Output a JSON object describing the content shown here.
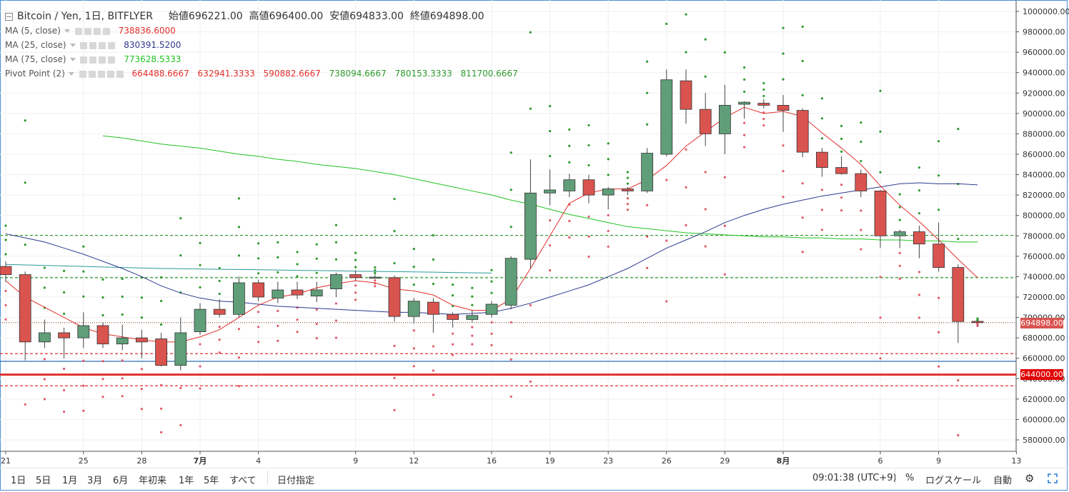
{
  "header": {
    "symbol": "Bitcoin / Yen, 1日, BITFLYER",
    "open_label": "始値",
    "open": "696221.00",
    "high_label": "高値",
    "high": "696400.00",
    "low_label": "安値",
    "low": "694833.00",
    "close_label": "終値",
    "close": "694898.00"
  },
  "indicators": [
    {
      "name": "MA (5, close)",
      "value": "738836.6000",
      "color": "#e0302c"
    },
    {
      "name": "MA (25, close)",
      "value": "830391.5200",
      "color": "#2f3a8f"
    },
    {
      "name": "MA (75, close)",
      "value": "773628.5333",
      "color": "#21c421"
    }
  ],
  "pivot": {
    "name": "Pivot Point (2)",
    "values": [
      "664488.6667",
      "632941.3333",
      "590882.6667",
      "738094.6667",
      "780153.3333",
      "811700.6667"
    ],
    "colors": [
      "#e0302c",
      "#e0302c",
      "#e0302c",
      "#2e9a2e",
      "#2e9a2e",
      "#2e9a2e"
    ]
  },
  "price_tags": {
    "last": "694898.00",
    "line": "644000.00"
  },
  "bottom_bar": {
    "periods": [
      "1日",
      "5日",
      "1月",
      "3月",
      "6月",
      "年初来",
      "1年",
      "5年",
      "すべて"
    ],
    "goto_date": "日付指定",
    "time": "09:01:38 (UTC+9)",
    "percent": "%",
    "log_scale": "ログスケール",
    "auto": "自動"
  },
  "chart_data": {
    "type": "candlestick",
    "x_tick_labels": [
      "21",
      "25",
      "28",
      "7月",
      "4",
      "9",
      "12",
      "16",
      "19",
      "23",
      "26",
      "29",
      "8月",
      "6",
      "9",
      "13"
    ],
    "y_tick_labels": [
      "1000000.00",
      "980000.00",
      "960000.00",
      "940000.00",
      "920000.00",
      "900000.00",
      "880000.00",
      "860000.00",
      "840000.00",
      "820000.00",
      "800000.00",
      "780000.00",
      "760000.00",
      "740000.00",
      "720000.00",
      "700000.00",
      "680000.00",
      "660000.00",
      "640000.00",
      "620000.00",
      "600000.00",
      "580000.00"
    ],
    "ylim": [
      570000,
      1000000
    ],
    "candles": [
      {
        "o": 750000,
        "h": 755000,
        "l": 735000,
        "c": 742000
      },
      {
        "o": 742000,
        "h": 745000,
        "l": 658000,
        "c": 676000
      },
      {
        "o": 676000,
        "h": 698000,
        "l": 670000,
        "c": 685000
      },
      {
        "o": 685000,
        "h": 690000,
        "l": 660000,
        "c": 680000
      },
      {
        "o": 680000,
        "h": 705000,
        "l": 670000,
        "c": 692000
      },
      {
        "o": 692000,
        "h": 695000,
        "l": 670000,
        "c": 674000
      },
      {
        "o": 674000,
        "h": 693000,
        "l": 668000,
        "c": 680000
      },
      {
        "o": 680000,
        "h": 688000,
        "l": 660000,
        "c": 676000
      },
      {
        "o": 679000,
        "h": 685000,
        "l": 652000,
        "c": 653000
      },
      {
        "o": 653000,
        "h": 700000,
        "l": 648000,
        "c": 685000
      },
      {
        "o": 686000,
        "h": 714000,
        "l": 683000,
        "c": 708000
      },
      {
        "o": 708000,
        "h": 718000,
        "l": 700000,
        "c": 703000
      },
      {
        "o": 703000,
        "h": 740000,
        "l": 700000,
        "c": 734000
      },
      {
        "o": 734000,
        "h": 737000,
        "l": 716000,
        "c": 720000
      },
      {
        "o": 719000,
        "h": 735000,
        "l": 714000,
        "c": 727000
      },
      {
        "o": 727000,
        "h": 735000,
        "l": 718000,
        "c": 722000
      },
      {
        "o": 721000,
        "h": 735000,
        "l": 715000,
        "c": 727000
      },
      {
        "o": 728000,
        "h": 744000,
        "l": 720000,
        "c": 742000
      },
      {
        "o": 742000,
        "h": 746000,
        "l": 736000,
        "c": 739000
      },
      {
        "o": 739000,
        "h": 742000,
        "l": 738000,
        "c": 739500
      },
      {
        "o": 739000,
        "h": 741000,
        "l": 696000,
        "c": 701000
      },
      {
        "o": 701000,
        "h": 719000,
        "l": 694000,
        "c": 716000
      },
      {
        "o": 715000,
        "h": 719000,
        "l": 685000,
        "c": 703000
      },
      {
        "o": 703000,
        "h": 705000,
        "l": 690000,
        "c": 698000
      },
      {
        "o": 698000,
        "h": 707000,
        "l": 695000,
        "c": 702000
      },
      {
        "o": 703000,
        "h": 716000,
        "l": 700000,
        "c": 713000
      },
      {
        "o": 712000,
        "h": 760000,
        "l": 708000,
        "c": 758000
      },
      {
        "o": 757000,
        "h": 855000,
        "l": 748000,
        "c": 822000
      },
      {
        "o": 822000,
        "h": 845000,
        "l": 810000,
        "c": 825000
      },
      {
        "o": 824000,
        "h": 841000,
        "l": 818000,
        "c": 835000
      },
      {
        "o": 835000,
        "h": 840000,
        "l": 812000,
        "c": 820000
      },
      {
        "o": 820000,
        "h": 828000,
        "l": 806000,
        "c": 826000
      },
      {
        "o": 826000,
        "h": 828000,
        "l": 820000,
        "c": 824000
      },
      {
        "o": 824000,
        "h": 866000,
        "l": 822000,
        "c": 861000
      },
      {
        "o": 860000,
        "h": 943000,
        "l": 858000,
        "c": 933000
      },
      {
        "o": 932000,
        "h": 943000,
        "l": 890000,
        "c": 904000
      },
      {
        "o": 904000,
        "h": 920000,
        "l": 868000,
        "c": 880000
      },
      {
        "o": 880000,
        "h": 928000,
        "l": 860000,
        "c": 908000
      },
      {
        "o": 909000,
        "h": 912000,
        "l": 895000,
        "c": 911000
      },
      {
        "o": 910000,
        "h": 914000,
        "l": 905000,
        "c": 908000
      },
      {
        "o": 908000,
        "h": 918000,
        "l": 882000,
        "c": 903000
      },
      {
        "o": 903000,
        "h": 905000,
        "l": 857000,
        "c": 862000
      },
      {
        "o": 862000,
        "h": 866000,
        "l": 838000,
        "c": 847000
      },
      {
        "o": 847000,
        "h": 858000,
        "l": 840000,
        "c": 841000
      },
      {
        "o": 841000,
        "h": 845000,
        "l": 818000,
        "c": 824000
      },
      {
        "o": 824000,
        "h": 825000,
        "l": 768000,
        "c": 780000
      },
      {
        "o": 780000,
        "h": 786000,
        "l": 768000,
        "c": 784000
      },
      {
        "o": 784000,
        "h": 790000,
        "l": 758000,
        "c": 772000
      },
      {
        "o": 772000,
        "h": 793000,
        "l": 745000,
        "c": 749000
      },
      {
        "o": 749000,
        "h": 752000,
        "l": 675000,
        "c": 696000
      },
      {
        "o": 696221,
        "h": 696400,
        "l": 694833,
        "c": 694898
      }
    ],
    "ma5": [
      736000,
      720000,
      710000,
      700000,
      690000,
      684000,
      681000,
      678000,
      676000,
      676000,
      681000,
      688000,
      700000,
      712000,
      720000,
      723000,
      729000,
      733000,
      736000,
      734000,
      728000,
      726000,
      722000,
      712000,
      707000,
      707000,
      718000,
      748000,
      780000,
      812000,
      822000,
      826000,
      826000,
      835000,
      849000,
      868000,
      882000,
      896000,
      906000,
      900000,
      902000,
      897000,
      881000,
      866000,
      850000,
      829000,
      810000,
      794000,
      776000,
      757000,
      739000
    ],
    "ma25": [
      782000,
      778000,
      774000,
      768000,
      762000,
      755000,
      748000,
      740000,
      731000,
      724000,
      719000,
      716000,
      715000,
      713000,
      711000,
      710000,
      709000,
      708000,
      707000,
      706000,
      705000,
      705000,
      704000,
      703000,
      704000,
      705000,
      709000,
      714000,
      720000,
      726000,
      732000,
      740000,
      748000,
      758000,
      768000,
      776000,
      784000,
      793000,
      800000,
      806000,
      811000,
      815000,
      819000,
      822000,
      825000,
      828000,
      831000,
      832000,
      831000,
      831000,
      830000
    ],
    "ma75_teal": [
      752000,
      751500,
      751000,
      750500,
      750000,
      749500,
      749000,
      748500,
      748000,
      747800,
      747500,
      747200,
      747000,
      746800,
      746500,
      746200,
      746000,
      745700,
      745400,
      745100,
      744900,
      744700,
      744400,
      744100,
      743800,
      743500
    ],
    "ma75": [
      878000,
      876000,
      873000,
      870000,
      868000,
      866000,
      863000,
      860000,
      858000,
      855000,
      853000,
      850000,
      848000,
      846000,
      843000,
      840000,
      836000,
      832000,
      828000,
      824000,
      820000,
      815000,
      811000,
      806000,
      801000,
      797000,
      793000,
      789000,
      787000,
      785000,
      783000,
      782000,
      781000,
      780000,
      779000,
      779000,
      778000,
      778000,
      777000,
      777000,
      776000,
      776000,
      775000,
      775000,
      774000,
      774000
    ],
    "h_lines": [
      {
        "y": 780500,
        "color": "#2e9a2e",
        "style": "dashed"
      },
      {
        "y": 739000,
        "color": "#2e9a2e",
        "style": "dashed"
      },
      {
        "y": 695000,
        "color": "#8a5a3c",
        "style": "dotted"
      },
      {
        "y": 664500,
        "color": "#e0302c",
        "style": "dashed"
      },
      {
        "y": 657000,
        "color": "#2c6fb8",
        "style": "solid"
      },
      {
        "y": 644000,
        "color": "#e0302c",
        "style": "solid"
      },
      {
        "y": 633000,
        "color": "#e0302c",
        "style": "dashed"
      }
    ]
  }
}
